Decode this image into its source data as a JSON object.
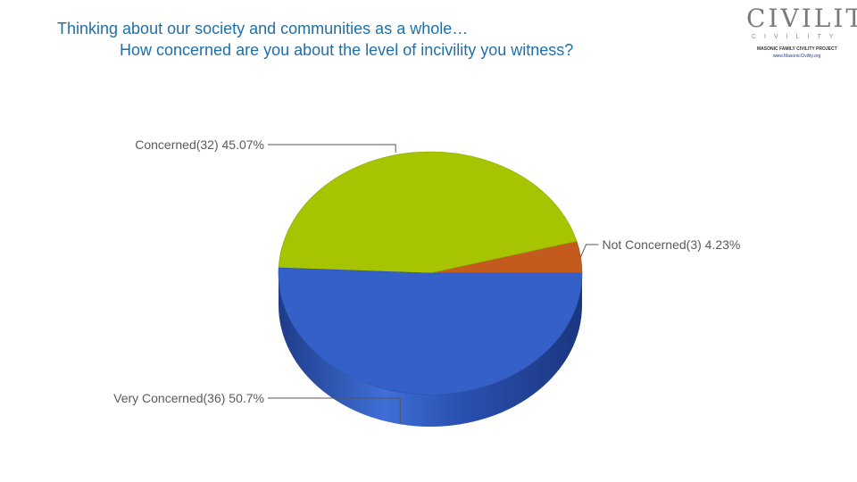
{
  "title": {
    "line1": "Thinking about our society and communities as a whole…",
    "line2": "How concerned are you about the level of incivility you witness?"
  },
  "logo": {
    "name": "CIVILITY",
    "subtitle": "CIVILITY",
    "project": "MASONIC FAMILY CIVILITY PROJECT",
    "url": "www.MasonicCivility.org"
  },
  "chart_data": {
    "type": "pie",
    "style": "3d",
    "slices": [
      {
        "name": "Concerned",
        "count": 32,
        "percent": 45.07,
        "label": "Concerned(32) 45.07%",
        "color": "#a6c400",
        "label_side": "left"
      },
      {
        "name": "Not Concerned",
        "count": 3,
        "percent": 4.23,
        "label": "Not Concerned(3) 4.23%",
        "color": "#c45a1e",
        "label_side": "right"
      },
      {
        "name": "Very Concerned",
        "count": 36,
        "percent": 50.7,
        "label": "Very Concerned(36) 50.7%",
        "color": "#3560c8",
        "label_side": "left"
      }
    ]
  }
}
